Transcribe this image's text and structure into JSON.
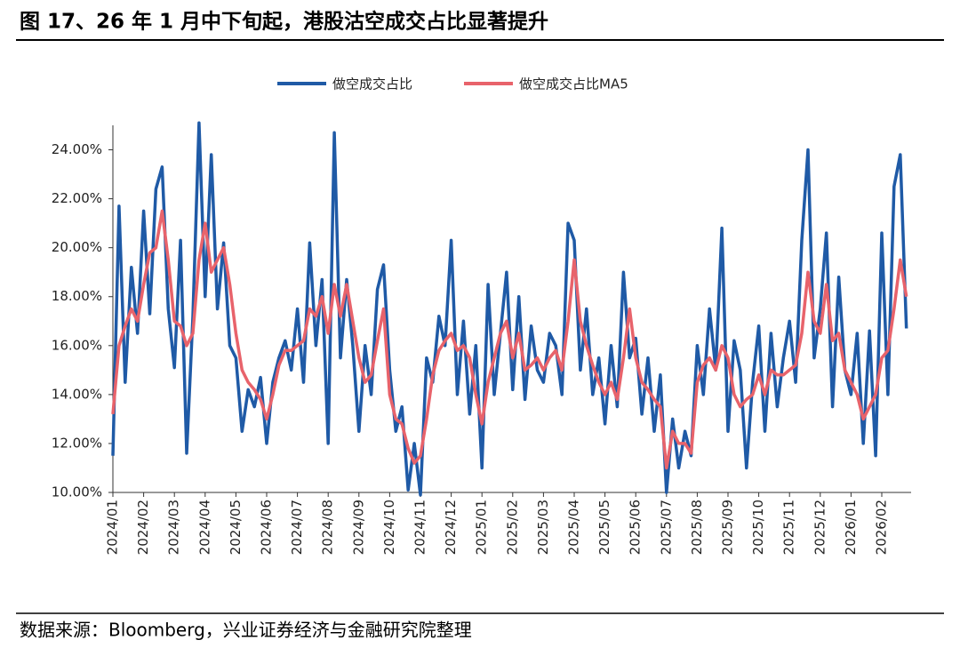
{
  "chart_data": {
    "type": "line",
    "title": "图 17、26 年 1 月中下旬起，港股沽空成交占比显著提升",
    "source": "数据来源：Bloomberg，兴业证券经济与金融研究院整理",
    "categories": [
      "2024/01",
      null,
      null,
      null,
      null,
      "2024/02",
      null,
      null,
      null,
      null,
      "2024/03",
      null,
      null,
      null,
      null,
      "2024/04",
      null,
      null,
      null,
      null,
      "2024/05",
      null,
      null,
      null,
      null,
      "2024/06",
      null,
      null,
      null,
      null,
      "2024/07",
      null,
      null,
      null,
      null,
      "2024/08",
      null,
      null,
      null,
      null,
      "2024/09",
      null,
      null,
      null,
      null,
      "2024/10",
      null,
      null,
      null,
      null,
      "2024/11",
      null,
      null,
      null,
      null,
      "2024/12",
      null,
      null,
      null,
      null,
      "2025/01",
      null,
      null,
      null,
      null,
      "2025/02",
      null,
      null,
      null,
      null,
      "2025/03",
      null,
      null,
      null,
      null,
      "2025/04",
      null,
      null,
      null,
      null,
      "2025/05",
      null,
      null,
      null,
      null,
      "2025/06",
      null,
      null,
      null,
      null,
      "2025/07",
      null,
      null,
      null,
      null,
      "2025/08",
      null,
      null,
      null,
      null,
      "2025/09",
      null,
      null,
      null,
      null,
      "2025/10",
      null,
      null,
      null,
      null,
      "2025/11",
      null,
      null,
      null,
      null,
      "2025/12",
      null,
      null,
      null,
      null,
      "2026/01",
      null,
      null,
      null,
      null,
      "2026/02",
      null,
      null,
      null,
      null
    ],
    "series": [
      {
        "name": "做空成交占比",
        "color": "#1f5aa6",
        "values": [
          11.5,
          21.7,
          14.5,
          19.2,
          16.5,
          21.5,
          17.3,
          22.4,
          23.3,
          17.5,
          15.1,
          20.3,
          11.6,
          17.2,
          25.1,
          18.0,
          23.8,
          17.5,
          20.2,
          16.0,
          15.5,
          12.5,
          14.2,
          13.5,
          14.7,
          12.0,
          14.5,
          15.5,
          16.2,
          15.0,
          17.5,
          14.5,
          20.2,
          16.0,
          18.7,
          12.0,
          24.7,
          15.5,
          18.7,
          16.0,
          12.5,
          16.0,
          14.0,
          18.3,
          19.3,
          15.0,
          12.5,
          13.5,
          10.1,
          12.0,
          9.9,
          15.5,
          14.5,
          17.2,
          16.0,
          20.3,
          14.0,
          17.0,
          13.2,
          16.0,
          11.0,
          18.5,
          14.0,
          16.5,
          19.0,
          14.2,
          18.0,
          13.8,
          16.8,
          15.0,
          14.5,
          16.5,
          16.0,
          14.0,
          21.0,
          20.3,
          15.0,
          17.5,
          14.0,
          15.5,
          12.8,
          16.0,
          13.5,
          19.0,
          15.5,
          16.3,
          13.2,
          15.5,
          12.5,
          14.8,
          10.0,
          13.0,
          11.0,
          12.5,
          11.5,
          16.0,
          14.0,
          17.5,
          15.0,
          20.8,
          12.5,
          16.2,
          15.0,
          11.0,
          14.5,
          16.8,
          12.5,
          16.5,
          13.5,
          15.5,
          17.0,
          14.5,
          20.3,
          24.0,
          15.5,
          17.5,
          20.6,
          13.5,
          18.8,
          15.0,
          14.0,
          16.5,
          12.0,
          16.6,
          11.5,
          20.6,
          14.0,
          22.5,
          23.8,
          16.7
        ]
      },
      {
        "name": "做空成交占比MA5",
        "color": "#e8636b",
        "values": [
          13.2,
          16.0,
          16.8,
          17.5,
          17.0,
          18.5,
          19.8,
          20.0,
          21.5,
          19.5,
          17.0,
          16.8,
          16.0,
          16.5,
          19.5,
          21.0,
          19.0,
          19.5,
          20.0,
          18.5,
          16.5,
          15.0,
          14.5,
          14.2,
          13.8,
          13.0,
          14.0,
          15.2,
          15.8,
          15.8,
          16.0,
          16.2,
          17.5,
          17.2,
          18.0,
          16.5,
          18.5,
          17.2,
          18.5,
          17.0,
          15.5,
          14.5,
          14.8,
          16.2,
          17.5,
          14.0,
          13.0,
          12.8,
          11.8,
          11.2,
          11.5,
          13.0,
          14.8,
          15.8,
          16.2,
          16.5,
          15.8,
          16.0,
          15.5,
          14.0,
          12.8,
          14.5,
          15.5,
          16.5,
          17.0,
          15.5,
          16.5,
          15.0,
          15.2,
          15.5,
          15.0,
          15.5,
          15.8,
          15.0,
          17.0,
          19.5,
          17.0,
          16.0,
          15.2,
          14.5,
          14.0,
          14.5,
          13.8,
          15.5,
          17.5,
          15.5,
          14.5,
          14.2,
          13.8,
          13.5,
          11.0,
          12.5,
          12.0,
          12.0,
          11.6,
          14.5,
          15.2,
          15.5,
          15.0,
          16.0,
          15.5,
          14.0,
          13.5,
          13.8,
          14.0,
          14.8,
          14.0,
          15.0,
          14.8,
          14.8,
          15.0,
          15.2,
          16.5,
          19.0,
          17.0,
          16.5,
          18.5,
          16.2,
          16.5,
          15.0,
          14.5,
          14.0,
          13.0,
          13.5,
          14.0,
          15.5,
          15.8,
          17.5,
          19.5,
          18.0
        ]
      }
    ],
    "ylim": [
      10,
      25
    ],
    "yticks": [
      {
        "value": 10,
        "label": "10.00%"
      },
      {
        "value": 12,
        "label": "12.00%"
      },
      {
        "value": 14,
        "label": "14.00%"
      },
      {
        "value": 16,
        "label": "16.00%"
      },
      {
        "value": 18,
        "label": "18.00%"
      },
      {
        "value": 20,
        "label": "20.00%"
      },
      {
        "value": 22,
        "label": "22.00%"
      },
      {
        "value": 24,
        "label": "24.00%"
      }
    ],
    "legend": "top",
    "grid": false
  }
}
